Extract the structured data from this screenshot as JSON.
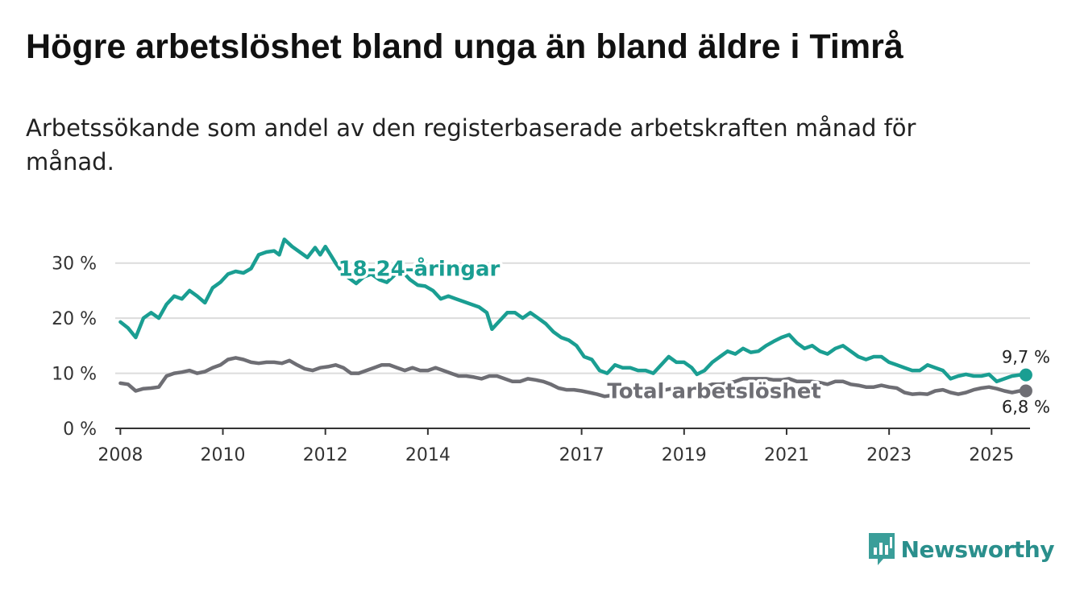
{
  "title": "Högre arbetslöshet bland unga än bland äldre i Timrå",
  "subtitle": "Arbetssökande som andel av den registerbaserade arbetskraften månad för månad.",
  "brand": {
    "name": "Newsworthy",
    "icon": "newsworthy-logo-icon"
  },
  "colors": {
    "youth": "#1a9e92",
    "total": "#6e6e74",
    "grid": "#dcdcdc",
    "axis": "#333333"
  },
  "chart_data": {
    "type": "line",
    "title": "Högre arbetslöshet bland unga än bland äldre i Timrå",
    "xlabel": "",
    "ylabel": "",
    "xlim": [
      2007.9,
      2025.75
    ],
    "ylim": [
      0,
      32
    ],
    "y_ticks": [
      0,
      10,
      20,
      30
    ],
    "y_tick_labels": [
      "0 %",
      "10 %",
      "20 %",
      "30 %"
    ],
    "x_ticks": [
      2008,
      2010,
      2012,
      2014,
      2017,
      2019,
      2021,
      2023,
      2025
    ],
    "x_tick_labels": [
      "2008",
      "2010",
      "2012",
      "2014",
      "2017",
      "2019",
      "2021",
      "2023",
      "2025"
    ],
    "grid": true,
    "series": [
      {
        "name": "18-24-åringar",
        "label": "18-24-åringar",
        "last_label": "9,7 %",
        "points": [
          [
            2008.0,
            19.3
          ],
          [
            2008.15,
            18.2
          ],
          [
            2008.3,
            16.5
          ],
          [
            2008.45,
            20.0
          ],
          [
            2008.6,
            21.0
          ],
          [
            2008.75,
            20.0
          ],
          [
            2008.9,
            22.5
          ],
          [
            2009.05,
            24.0
          ],
          [
            2009.2,
            23.5
          ],
          [
            2009.35,
            25.0
          ],
          [
            2009.5,
            24.0
          ],
          [
            2009.65,
            22.8
          ],
          [
            2009.8,
            25.5
          ],
          [
            2009.95,
            26.5
          ],
          [
            2010.1,
            28.0
          ],
          [
            2010.25,
            28.5
          ],
          [
            2010.4,
            28.2
          ],
          [
            2010.55,
            29.0
          ],
          [
            2010.7,
            31.5
          ],
          [
            2010.85,
            32.0
          ],
          [
            2011.0,
            32.2
          ],
          [
            2011.1,
            31.5
          ],
          [
            2011.2,
            34.3
          ],
          [
            2011.35,
            33.0
          ],
          [
            2011.5,
            32.0
          ],
          [
            2011.65,
            31.0
          ],
          [
            2011.8,
            32.8
          ],
          [
            2011.9,
            31.5
          ],
          [
            2012.0,
            33.0
          ],
          [
            2012.1,
            31.5
          ],
          [
            2012.2,
            30.0
          ],
          [
            2012.35,
            28.0
          ],
          [
            2012.5,
            27.0
          ],
          [
            2012.6,
            26.3
          ],
          [
            2012.75,
            27.5
          ],
          [
            2012.9,
            28.0
          ],
          [
            2013.05,
            27.0
          ],
          [
            2013.2,
            26.5
          ],
          [
            2013.35,
            27.8
          ],
          [
            2013.5,
            28.5
          ],
          [
            2013.65,
            27.0
          ],
          [
            2013.8,
            26.0
          ],
          [
            2013.95,
            25.8
          ],
          [
            2014.1,
            25.0
          ],
          [
            2014.25,
            23.5
          ],
          [
            2014.4,
            24.0
          ],
          [
            2014.55,
            23.5
          ],
          [
            2014.7,
            23.0
          ],
          [
            2014.85,
            22.5
          ],
          [
            2015.0,
            22.0
          ],
          [
            2015.15,
            21.0
          ],
          [
            2015.25,
            18.0
          ],
          [
            2015.4,
            19.5
          ],
          [
            2015.55,
            21.0
          ],
          [
            2015.7,
            21.0
          ],
          [
            2015.85,
            20.0
          ],
          [
            2016.0,
            21.0
          ],
          [
            2016.15,
            20.0
          ],
          [
            2016.3,
            19.0
          ],
          [
            2016.45,
            17.5
          ],
          [
            2016.6,
            16.5
          ],
          [
            2016.75,
            16.0
          ],
          [
            2016.9,
            15.0
          ],
          [
            2017.05,
            13.0
          ],
          [
            2017.2,
            12.5
          ],
          [
            2017.35,
            10.5
          ],
          [
            2017.5,
            10.0
          ],
          [
            2017.65,
            11.5
          ],
          [
            2017.8,
            11.0
          ],
          [
            2017.95,
            11.0
          ],
          [
            2018.1,
            10.5
          ],
          [
            2018.25,
            10.5
          ],
          [
            2018.4,
            10.0
          ],
          [
            2018.55,
            11.5
          ],
          [
            2018.7,
            13.0
          ],
          [
            2018.85,
            12.0
          ],
          [
            2019.0,
            12.0
          ],
          [
            2019.15,
            11.0
          ],
          [
            2019.25,
            9.8
          ],
          [
            2019.4,
            10.5
          ],
          [
            2019.55,
            12.0
          ],
          [
            2019.7,
            13.0
          ],
          [
            2019.85,
            14.0
          ],
          [
            2020.0,
            13.5
          ],
          [
            2020.15,
            14.5
          ],
          [
            2020.3,
            13.8
          ],
          [
            2020.45,
            14.0
          ],
          [
            2020.6,
            15.0
          ],
          [
            2020.75,
            15.8
          ],
          [
            2020.9,
            16.5
          ],
          [
            2021.05,
            17.0
          ],
          [
            2021.2,
            15.5
          ],
          [
            2021.35,
            14.5
          ],
          [
            2021.5,
            15.0
          ],
          [
            2021.65,
            14.0
          ],
          [
            2021.8,
            13.5
          ],
          [
            2021.95,
            14.5
          ],
          [
            2022.1,
            15.0
          ],
          [
            2022.25,
            14.0
          ],
          [
            2022.4,
            13.0
          ],
          [
            2022.55,
            12.5
          ],
          [
            2022.7,
            13.0
          ],
          [
            2022.85,
            13.0
          ],
          [
            2023.0,
            12.0
          ],
          [
            2023.15,
            11.5
          ],
          [
            2023.3,
            11.0
          ],
          [
            2023.45,
            10.5
          ],
          [
            2023.6,
            10.5
          ],
          [
            2023.75,
            11.5
          ],
          [
            2023.9,
            11.0
          ],
          [
            2024.05,
            10.5
          ],
          [
            2024.2,
            9.0
          ],
          [
            2024.35,
            9.5
          ],
          [
            2024.5,
            9.8
          ],
          [
            2024.65,
            9.5
          ],
          [
            2024.8,
            9.5
          ],
          [
            2024.95,
            9.8
          ],
          [
            2025.1,
            8.5
          ],
          [
            2025.25,
            9.0
          ],
          [
            2025.4,
            9.5
          ],
          [
            2025.55,
            9.7
          ],
          [
            2025.67,
            9.7
          ]
        ]
      },
      {
        "name": "Total arbetslöshet",
        "label": "Total arbetslöshet",
        "last_label": "6,8 %",
        "points": [
          [
            2008.0,
            8.2
          ],
          [
            2008.15,
            8.0
          ],
          [
            2008.3,
            6.8
          ],
          [
            2008.45,
            7.2
          ],
          [
            2008.6,
            7.3
          ],
          [
            2008.75,
            7.5
          ],
          [
            2008.9,
            9.5
          ],
          [
            2009.05,
            10.0
          ],
          [
            2009.2,
            10.2
          ],
          [
            2009.35,
            10.5
          ],
          [
            2009.5,
            10.0
          ],
          [
            2009.65,
            10.3
          ],
          [
            2009.8,
            11.0
          ],
          [
            2009.95,
            11.5
          ],
          [
            2010.1,
            12.5
          ],
          [
            2010.25,
            12.8
          ],
          [
            2010.4,
            12.5
          ],
          [
            2010.55,
            12.0
          ],
          [
            2010.7,
            11.8
          ],
          [
            2010.85,
            12.0
          ],
          [
            2011.0,
            12.0
          ],
          [
            2011.15,
            11.8
          ],
          [
            2011.3,
            12.3
          ],
          [
            2011.45,
            11.5
          ],
          [
            2011.6,
            10.8
          ],
          [
            2011.75,
            10.5
          ],
          [
            2011.9,
            11.0
          ],
          [
            2012.05,
            11.2
          ],
          [
            2012.2,
            11.5
          ],
          [
            2012.35,
            11.0
          ],
          [
            2012.5,
            10.0
          ],
          [
            2012.65,
            10.0
          ],
          [
            2012.8,
            10.5
          ],
          [
            2012.95,
            11.0
          ],
          [
            2013.1,
            11.5
          ],
          [
            2013.25,
            11.5
          ],
          [
            2013.4,
            11.0
          ],
          [
            2013.55,
            10.5
          ],
          [
            2013.7,
            11.0
          ],
          [
            2013.85,
            10.5
          ],
          [
            2014.0,
            10.5
          ],
          [
            2014.15,
            11.0
          ],
          [
            2014.3,
            10.5
          ],
          [
            2014.45,
            10.0
          ],
          [
            2014.6,
            9.5
          ],
          [
            2014.75,
            9.5
          ],
          [
            2014.9,
            9.3
          ],
          [
            2015.05,
            9.0
          ],
          [
            2015.2,
            9.5
          ],
          [
            2015.35,
            9.5
          ],
          [
            2015.5,
            9.0
          ],
          [
            2015.65,
            8.5
          ],
          [
            2015.8,
            8.5
          ],
          [
            2015.95,
            9.0
          ],
          [
            2016.1,
            8.8
          ],
          [
            2016.25,
            8.5
          ],
          [
            2016.4,
            8.0
          ],
          [
            2016.55,
            7.3
          ],
          [
            2016.7,
            7.0
          ],
          [
            2016.85,
            7.0
          ],
          [
            2017.0,
            6.8
          ],
          [
            2017.15,
            6.5
          ],
          [
            2017.3,
            6.2
          ],
          [
            2017.45,
            5.8
          ],
          [
            2017.6,
            6.0
          ],
          [
            2017.75,
            6.3
          ],
          [
            2017.9,
            6.5
          ],
          [
            2018.05,
            6.8
          ],
          [
            2018.2,
            6.5
          ],
          [
            2018.35,
            6.8
          ],
          [
            2018.5,
            7.0
          ],
          [
            2018.65,
            7.0
          ],
          [
            2018.8,
            7.3
          ],
          [
            2018.95,
            7.0
          ],
          [
            2019.1,
            7.0
          ],
          [
            2019.25,
            6.8
          ],
          [
            2019.4,
            7.5
          ],
          [
            2019.55,
            8.0
          ],
          [
            2019.7,
            8.0
          ],
          [
            2019.85,
            8.2
          ],
          [
            2020.0,
            8.5
          ],
          [
            2020.15,
            9.0
          ],
          [
            2020.3,
            9.0
          ],
          [
            2020.45,
            9.0
          ],
          [
            2020.6,
            9.0
          ],
          [
            2020.75,
            8.8
          ],
          [
            2020.9,
            8.8
          ],
          [
            2021.05,
            9.0
          ],
          [
            2021.2,
            8.5
          ],
          [
            2021.35,
            8.5
          ],
          [
            2021.5,
            8.5
          ],
          [
            2021.65,
            8.3
          ],
          [
            2021.8,
            8.0
          ],
          [
            2021.95,
            8.5
          ],
          [
            2022.1,
            8.5
          ],
          [
            2022.25,
            8.0
          ],
          [
            2022.4,
            7.8
          ],
          [
            2022.55,
            7.5
          ],
          [
            2022.7,
            7.5
          ],
          [
            2022.85,
            7.8
          ],
          [
            2023.0,
            7.5
          ],
          [
            2023.15,
            7.3
          ],
          [
            2023.3,
            6.5
          ],
          [
            2023.45,
            6.2
          ],
          [
            2023.6,
            6.3
          ],
          [
            2023.75,
            6.2
          ],
          [
            2023.9,
            6.8
          ],
          [
            2024.05,
            7.0
          ],
          [
            2024.2,
            6.5
          ],
          [
            2024.35,
            6.2
          ],
          [
            2024.5,
            6.5
          ],
          [
            2024.65,
            7.0
          ],
          [
            2024.8,
            7.3
          ],
          [
            2024.95,
            7.5
          ],
          [
            2025.1,
            7.2
          ],
          [
            2025.25,
            6.8
          ],
          [
            2025.4,
            6.5
          ],
          [
            2025.55,
            6.8
          ],
          [
            2025.67,
            6.8
          ]
        ]
      }
    ]
  }
}
